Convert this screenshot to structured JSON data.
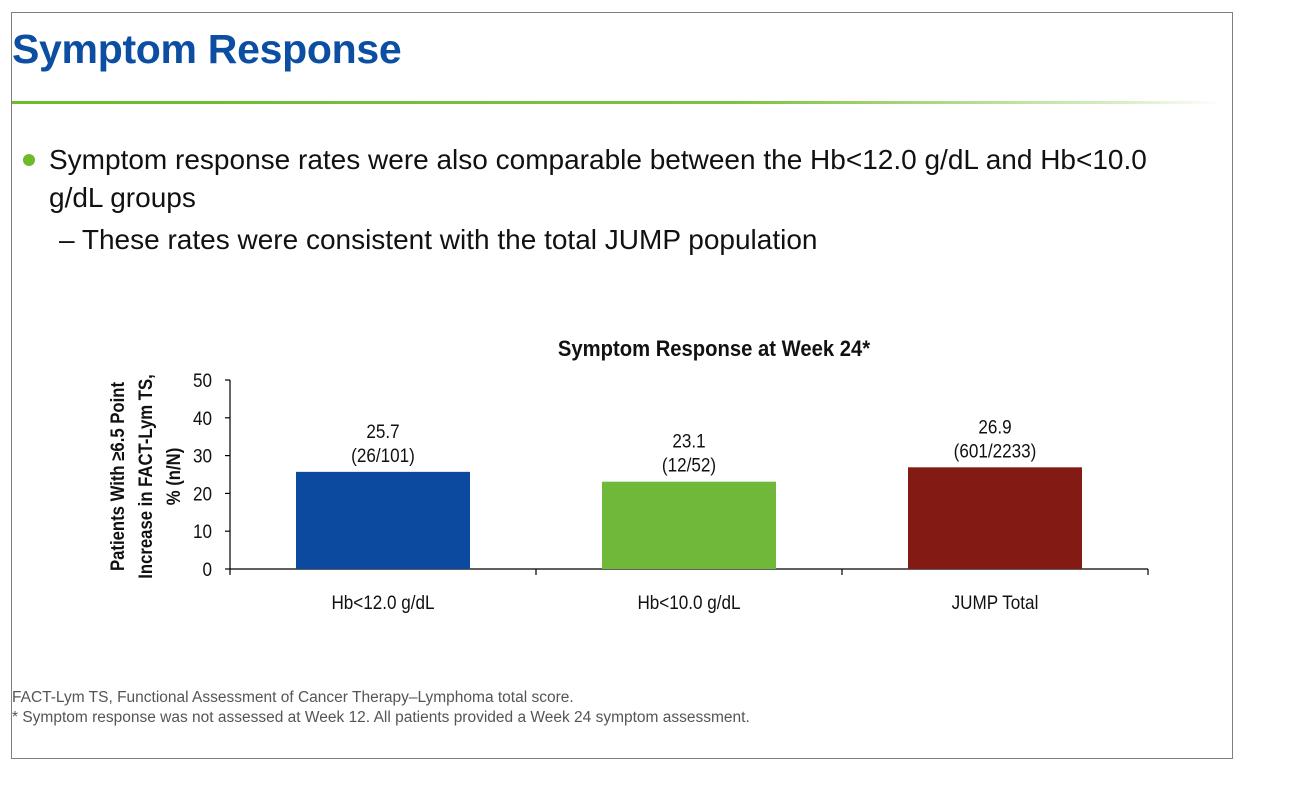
{
  "slide": {
    "title": "Symptom Response",
    "bullet_main": "Symptom response rates were also comparable between the Hb<12.0 g/dL and Hb<10.0 g/dL groups",
    "bullet_sub": "– These rates were consistent with the total JUMP population",
    "footnote_1": "FACT-Lym TS, Functional Assessment of Cancer Therapy–Lymphoma total score.",
    "footnote_2": "* Symptom response was not assessed at Week 12. All patients provided a Week 24 symptom assessment."
  },
  "colors": {
    "title": "#0b4ea2",
    "accent_green": "#6dbb2d",
    "bars": [
      "#0b4a9e",
      "#6fb83a",
      "#831a14"
    ]
  },
  "chart_data": {
    "type": "bar",
    "title": "Symptom Response at Week 24*",
    "ylabel_lines": [
      "Patients With ≥6.5 Point",
      "Increase in FACT-Lym TS,",
      "% (n/N)"
    ],
    "categories": [
      "Hb<12.0 g/dL",
      "Hb<10.0 g/dL",
      "JUMP Total"
    ],
    "values": [
      25.7,
      23.1,
      26.9
    ],
    "value_labels": [
      "25.7",
      "23.1",
      "26.9"
    ],
    "count_labels": [
      "(26/101)",
      "(12/52)",
      "(601/2233)"
    ],
    "ylim": [
      0,
      50
    ],
    "yticks": [
      0,
      10,
      20,
      30,
      40,
      50
    ],
    "grid": false,
    "legend": "none"
  }
}
